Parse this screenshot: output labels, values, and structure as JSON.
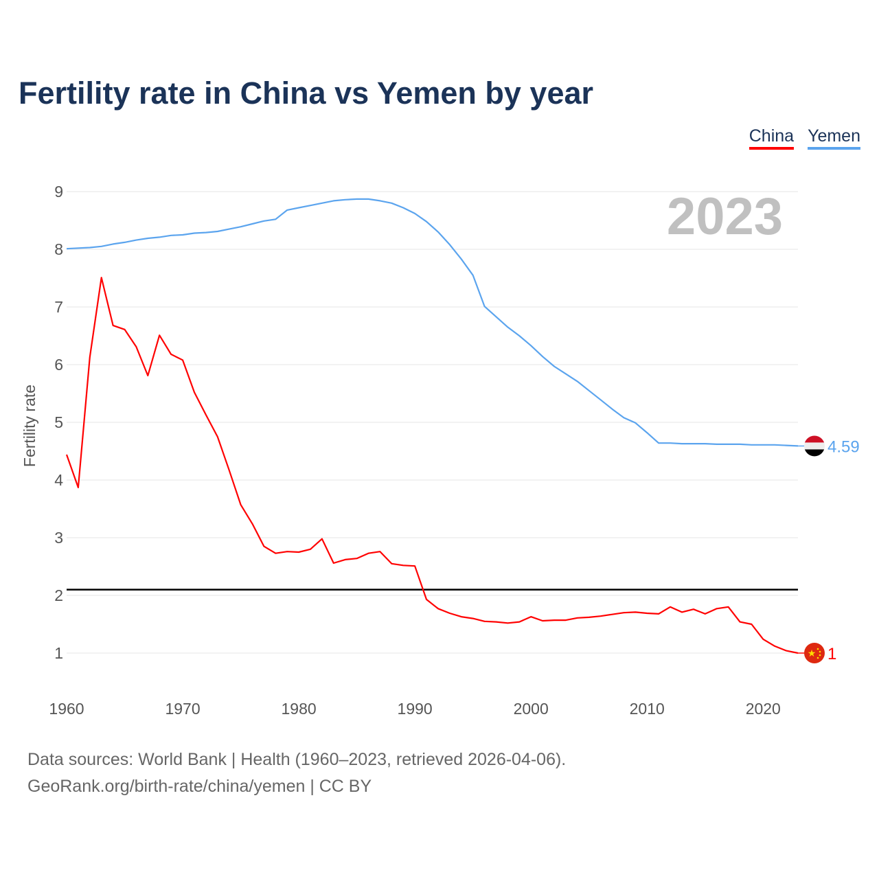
{
  "title": "Fertility rate in China vs Yemen by year",
  "legend": [
    {
      "label": "China",
      "color": "#ff0000"
    },
    {
      "label": "Yemen",
      "color": "#5ba4ee"
    }
  ],
  "footer": {
    "line1": "Data sources: World Bank | Health (1960–2023, retrieved 2026-04-06).",
    "line2": "GeoRank.org/birth-rate/china/yemen | CC BY"
  },
  "chart_data": {
    "type": "line",
    "title": "Fertility rate in China vs Yemen by year",
    "ylabel": "Fertility rate",
    "xlabel": "",
    "year_label": "2023",
    "xlim": [
      1960,
      2023
    ],
    "ylim": [
      0.5,
      9.3
    ],
    "x_ticks": [
      "1960",
      "1970",
      "1980",
      "1990",
      "2000",
      "2010",
      "2020"
    ],
    "y_ticks": [
      "1",
      "2",
      "3",
      "4",
      "5",
      "6",
      "7",
      "8",
      "9"
    ],
    "grid": true,
    "legend_position": "top-right",
    "reference_line": {
      "value": 2.1,
      "color": "#000000"
    },
    "x": [
      1960,
      1961,
      1962,
      1963,
      1964,
      1965,
      1966,
      1967,
      1968,
      1969,
      1970,
      1971,
      1972,
      1973,
      1974,
      1975,
      1976,
      1977,
      1978,
      1979,
      1980,
      1981,
      1982,
      1983,
      1984,
      1985,
      1986,
      1987,
      1988,
      1989,
      1990,
      1991,
      1992,
      1993,
      1994,
      1995,
      1996,
      1997,
      1998,
      1999,
      2000,
      2001,
      2002,
      2003,
      2004,
      2005,
      2006,
      2007,
      2008,
      2009,
      2010,
      2011,
      2012,
      2013,
      2014,
      2015,
      2016,
      2017,
      2018,
      2019,
      2020,
      2021,
      2022,
      2023
    ],
    "series": [
      {
        "name": "China",
        "color": "#ff0000",
        "end_label": "1",
        "values": [
          4.44,
          3.87,
          6.13,
          7.51,
          6.68,
          6.61,
          6.31,
          5.81,
          6.51,
          6.18,
          6.08,
          5.52,
          5.13,
          4.75,
          4.17,
          3.57,
          3.24,
          2.85,
          2.73,
          2.76,
          2.75,
          2.8,
          2.98,
          2.56,
          2.62,
          2.64,
          2.73,
          2.76,
          2.55,
          2.52,
          2.51,
          1.93,
          1.77,
          1.69,
          1.63,
          1.6,
          1.55,
          1.54,
          1.52,
          1.54,
          1.63,
          1.56,
          1.57,
          1.57,
          1.61,
          1.62,
          1.64,
          1.67,
          1.7,
          1.71,
          1.69,
          1.68,
          1.8,
          1.71,
          1.76,
          1.68,
          1.77,
          1.8,
          1.54,
          1.5,
          1.24,
          1.12,
          1.04,
          1.0
        ]
      },
      {
        "name": "Yemen",
        "color": "#5ba4ee",
        "end_label": "4.59",
        "values": [
          8.01,
          8.02,
          8.03,
          8.05,
          8.09,
          8.12,
          8.16,
          8.19,
          8.21,
          8.24,
          8.25,
          8.28,
          8.29,
          8.31,
          8.35,
          8.39,
          8.44,
          8.49,
          8.52,
          8.68,
          8.72,
          8.76,
          8.8,
          8.84,
          8.86,
          8.87,
          8.87,
          8.84,
          8.8,
          8.72,
          8.62,
          8.48,
          8.3,
          8.08,
          7.83,
          7.55,
          7.01,
          6.83,
          6.65,
          6.5,
          6.33,
          6.14,
          5.97,
          5.84,
          5.71,
          5.55,
          5.39,
          5.23,
          5.08,
          4.99,
          4.82,
          4.64,
          4.64,
          4.63,
          4.63,
          4.63,
          4.62,
          4.62,
          4.62,
          4.61,
          4.61,
          4.61,
          4.6,
          4.59
        ]
      }
    ]
  }
}
